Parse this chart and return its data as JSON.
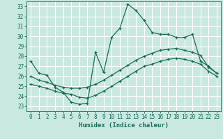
{
  "xlabel": "Humidex (Indice chaleur)",
  "ylabel": "",
  "bg_color": "#c8e8e0",
  "grid_color": "#ffffff",
  "line_color": "#1a6b5a",
  "xlim": [
    -0.5,
    23.5
  ],
  "ylim": [
    22.5,
    33.5
  ],
  "xticks": [
    0,
    1,
    2,
    3,
    4,
    5,
    6,
    7,
    8,
    9,
    10,
    11,
    12,
    13,
    14,
    15,
    16,
    17,
    18,
    19,
    20,
    21,
    22,
    23
  ],
  "yticks": [
    23,
    24,
    25,
    26,
    27,
    28,
    29,
    30,
    31,
    32,
    33
  ],
  "line1_x": [
    0,
    1,
    2,
    3,
    4,
    5,
    6,
    7,
    8,
    9,
    10,
    11,
    12,
    13,
    14,
    15,
    16,
    17,
    18,
    19,
    20,
    21,
    22,
    23
  ],
  "line1_y": [
    27.5,
    26.3,
    26.1,
    24.9,
    24.4,
    23.4,
    23.2,
    23.3,
    28.4,
    26.4,
    29.9,
    30.8,
    33.2,
    32.6,
    31.6,
    30.4,
    30.2,
    30.2,
    29.9,
    29.9,
    30.2,
    27.5,
    27.0,
    26.3
  ],
  "line2_x": [
    0,
    1,
    2,
    3,
    4,
    5,
    6,
    7,
    8,
    9,
    10,
    11,
    12,
    13,
    14,
    15,
    16,
    17,
    18,
    19,
    20,
    21,
    22,
    23
  ],
  "line2_y": [
    26.0,
    25.6,
    25.4,
    25.1,
    24.9,
    24.8,
    24.8,
    24.9,
    25.2,
    25.6,
    26.1,
    26.6,
    27.1,
    27.6,
    28.0,
    28.3,
    28.6,
    28.7,
    28.8,
    28.6,
    28.4,
    28.1,
    26.9,
    26.3
  ],
  "line3_x": [
    0,
    1,
    2,
    3,
    4,
    5,
    6,
    7,
    8,
    9,
    10,
    11,
    12,
    13,
    14,
    15,
    16,
    17,
    18,
    19,
    20,
    21,
    22,
    23
  ],
  "line3_y": [
    25.2,
    25.0,
    24.8,
    24.5,
    24.3,
    24.2,
    23.9,
    23.8,
    24.1,
    24.5,
    25.0,
    25.5,
    26.0,
    26.5,
    27.0,
    27.2,
    27.5,
    27.7,
    27.8,
    27.7,
    27.5,
    27.2,
    26.5,
    26.0
  ]
}
